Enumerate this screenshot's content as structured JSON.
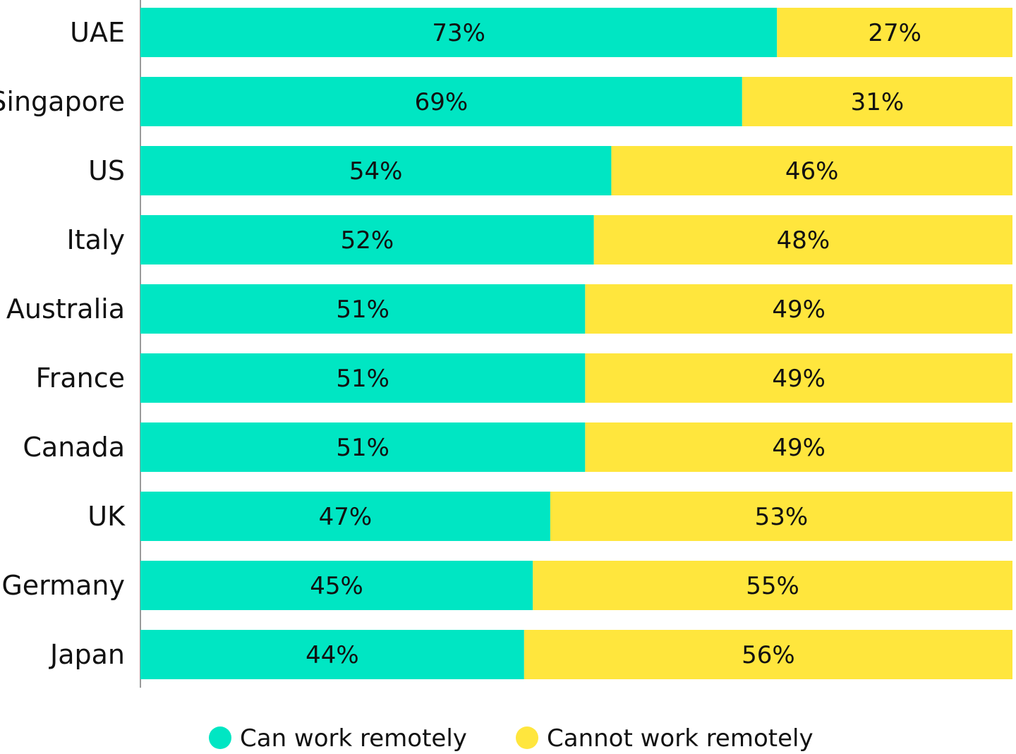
{
  "chart_data": {
    "type": "bar",
    "orientation": "horizontal",
    "stacked": true,
    "categories": [
      "UAE",
      "Singapore",
      "US",
      "Italy",
      "Australia",
      "France",
      "Canada",
      "UK",
      "Germany",
      "Japan"
    ],
    "series": [
      {
        "name": "Can work remotely",
        "color": "#00E6C3",
        "values": [
          73,
          69,
          54,
          52,
          51,
          51,
          51,
          47,
          45,
          44
        ],
        "labels": [
          "73%",
          "69%",
          "54%",
          "52%",
          "51%",
          "51%",
          "51%",
          "47%",
          "45%",
          "44%"
        ]
      },
      {
        "name": "Cannot work remotely",
        "color": "#FFE63D",
        "values": [
          27,
          31,
          46,
          48,
          49,
          49,
          49,
          53,
          55,
          56
        ],
        "labels": [
          "27%",
          "31%",
          "46%",
          "48%",
          "49%",
          "49%",
          "49%",
          "53%",
          "55%",
          "56%"
        ]
      }
    ],
    "xlim": [
      0,
      100
    ],
    "grid": false,
    "legend": "bottom-center",
    "title": "",
    "xlabel": "",
    "ylabel": ""
  }
}
